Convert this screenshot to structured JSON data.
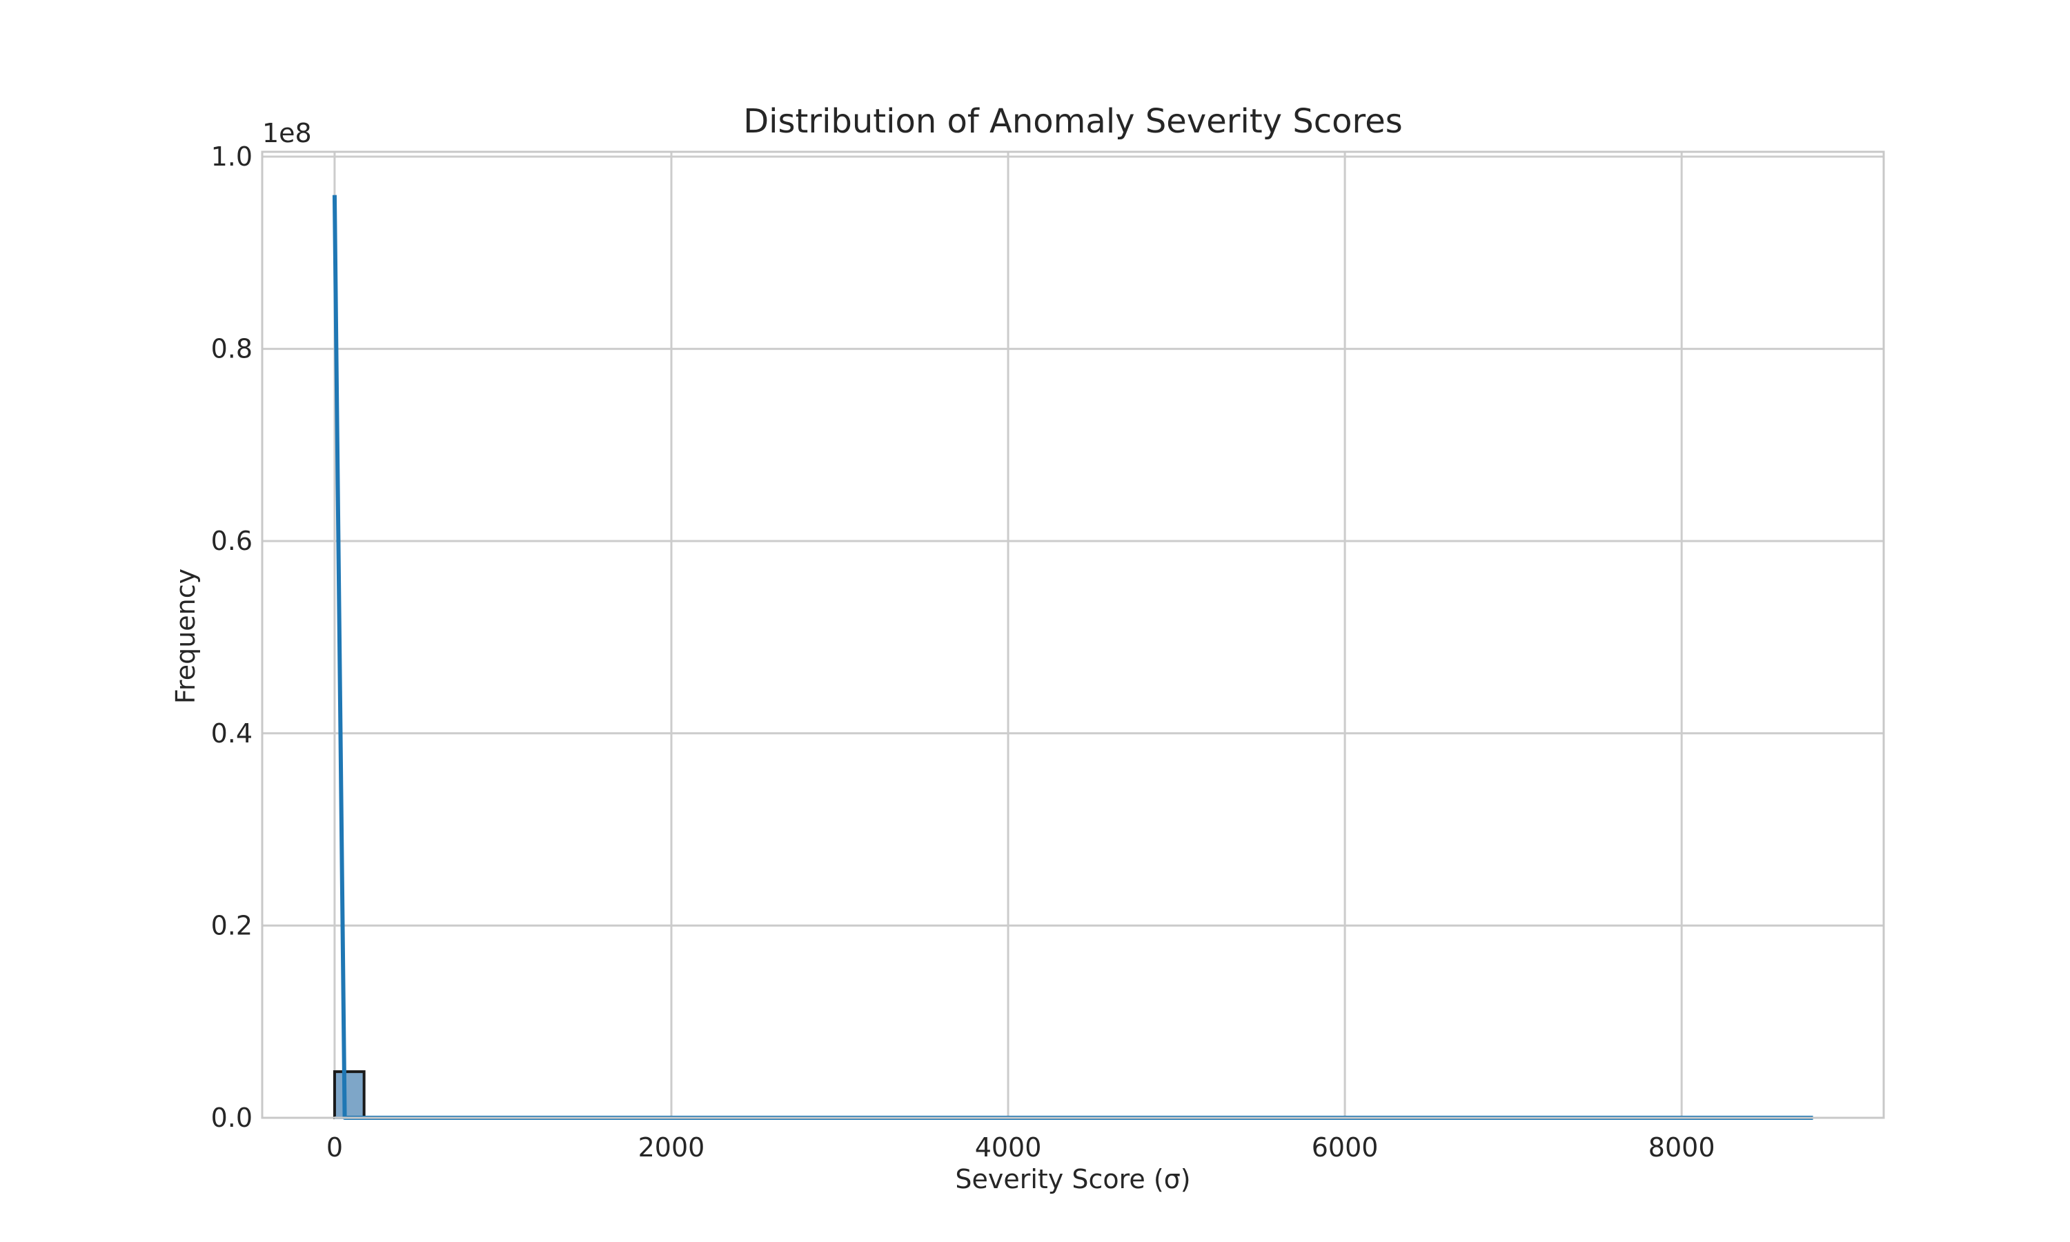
{
  "chart_data": {
    "type": "bar",
    "title": "Distribution of Anomaly Severity Scores",
    "xlabel": "Severity Score (σ)",
    "ylabel": "Frequency",
    "y_offset_text": "1e8",
    "xlim": [
      -430,
      9200
    ],
    "ylim": [
      0,
      1.005
    ],
    "x_ticks": [
      0,
      2000,
      4000,
      6000,
      8000
    ],
    "x_tick_labels": [
      "0",
      "2000",
      "4000",
      "6000",
      "8000"
    ],
    "y_ticks": [
      0,
      0.2,
      0.4,
      0.6,
      0.8,
      1.0
    ],
    "y_tick_labels": [
      "0.0",
      "0.2",
      "0.4",
      "0.6",
      "0.8",
      "1.0"
    ],
    "grid": true,
    "legend": "none",
    "histogram": {
      "bin_edges": [
        0,
        175,
        350
      ],
      "counts": [
        0.048,
        0.0
      ],
      "note_color": "#1f77b4"
    },
    "kde_series": {
      "x": [
        0,
        60,
        120,
        300,
        1000,
        3000,
        6000,
        8780
      ],
      "y": [
        0.96,
        0.0,
        0.0,
        0.0,
        0.0,
        0.0,
        0.0,
        0.0
      ]
    },
    "colors": {
      "bar_fill": "#7ea6c8",
      "bar_edge": "#1a1a1a",
      "kde_line": "#1f77b4",
      "grid": "#cccccc",
      "spine": "#c8c8c8",
      "text": "#262626"
    }
  }
}
